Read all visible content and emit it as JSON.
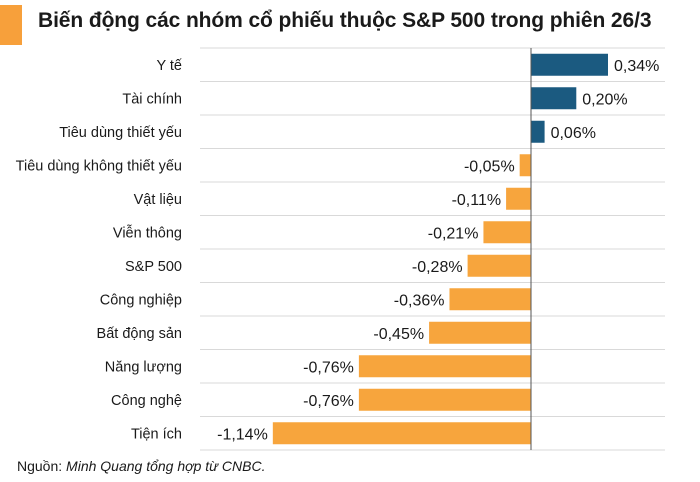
{
  "title": "Biến động các nhóm cổ phiếu thuộc S&P 500 trong phiên 26/3",
  "source": {
    "label": "Nguồn:",
    "text": "Minh Quang tổng hợp từ CNBC."
  },
  "colors": {
    "positive": "#1b5a80",
    "negative": "#f7a53d",
    "accent": "#f7a03b",
    "grid": "#d9d9d9"
  },
  "chart_data": {
    "type": "bar",
    "orientation": "horizontal",
    "categories": [
      "Y tế",
      "Tài chính",
      "Tiêu dùng thiết yếu",
      "Tiêu dùng không thiết yếu",
      "Vật liệu",
      "Viễn thông",
      "S&P 500",
      "Công nghiệp",
      "Bất động sản",
      "Năng lượng",
      "Công nghệ",
      "Tiện ích"
    ],
    "values": [
      0.34,
      0.2,
      0.06,
      -0.05,
      -0.11,
      -0.21,
      -0.28,
      -0.36,
      -0.45,
      -0.76,
      -0.76,
      -1.14
    ],
    "data_labels": [
      "0,34%",
      "0,20%",
      "0,06%",
      "-0,05%",
      "-0,11%",
      "-0,21%",
      "-0,28%",
      "-0,36%",
      "-0,45%",
      "-0,76%",
      "-0,76%",
      "-1,14%"
    ],
    "unit": "%",
    "xlim": [
      -1.14,
      0.34
    ],
    "grid": true
  }
}
